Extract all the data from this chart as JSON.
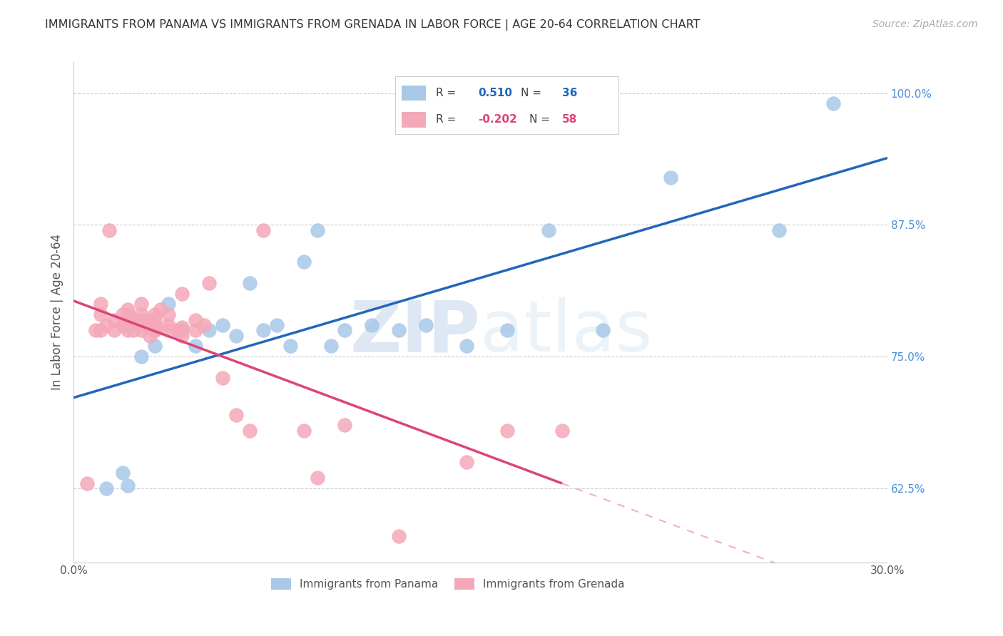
{
  "title": "IMMIGRANTS FROM PANAMA VS IMMIGRANTS FROM GRENADA IN LABOR FORCE | AGE 20-64 CORRELATION CHART",
  "source": "Source: ZipAtlas.com",
  "ylabel": "In Labor Force | Age 20-64",
  "xlim": [
    0.0,
    0.3
  ],
  "ylim": [
    0.555,
    1.03
  ],
  "x_ticks": [
    0.0,
    0.05,
    0.1,
    0.15,
    0.2,
    0.25,
    0.3
  ],
  "x_tick_labels": [
    "0.0%",
    "",
    "",
    "",
    "",
    "",
    "30.0%"
  ],
  "y_ticks": [
    0.625,
    0.75,
    0.875,
    1.0
  ],
  "y_tick_labels": [
    "62.5%",
    "75.0%",
    "87.5%",
    "100.0%"
  ],
  "panama_color": "#a8c8e8",
  "grenada_color": "#f4a8b8",
  "panama_line_color": "#2266bb",
  "grenada_line_solid_color": "#dd4477",
  "grenada_line_dash_color": "#f0b0c0",
  "watermark_zip": "ZIP",
  "watermark_atlas": "atlas",
  "legend_R_panama": "0.510",
  "legend_N_panama": "36",
  "legend_R_grenada": "-0.202",
  "legend_N_grenada": "58",
  "panama_x": [
    0.012,
    0.018,
    0.02,
    0.025,
    0.03,
    0.03,
    0.035,
    0.04,
    0.045,
    0.05,
    0.055,
    0.06,
    0.065,
    0.07,
    0.075,
    0.08,
    0.085,
    0.09,
    0.095,
    0.1,
    0.11,
    0.12,
    0.13,
    0.145,
    0.16,
    0.175,
    0.195,
    0.22,
    0.26,
    0.28
  ],
  "panama_y": [
    0.625,
    0.64,
    0.628,
    0.75,
    0.76,
    0.775,
    0.8,
    0.775,
    0.76,
    0.775,
    0.78,
    0.77,
    0.82,
    0.775,
    0.78,
    0.76,
    0.84,
    0.87,
    0.76,
    0.775,
    0.78,
    0.775,
    0.78,
    0.76,
    0.775,
    0.87,
    0.775,
    0.92,
    0.87,
    0.99
  ],
  "grenada_x": [
    0.005,
    0.008,
    0.01,
    0.01,
    0.01,
    0.012,
    0.013,
    0.015,
    0.015,
    0.018,
    0.018,
    0.02,
    0.02,
    0.02,
    0.02,
    0.02,
    0.022,
    0.022,
    0.025,
    0.025,
    0.025,
    0.025,
    0.025,
    0.028,
    0.028,
    0.03,
    0.03,
    0.03,
    0.03,
    0.032,
    0.035,
    0.035,
    0.035,
    0.038,
    0.04,
    0.04,
    0.04,
    0.045,
    0.045,
    0.048,
    0.05,
    0.055,
    0.06,
    0.065,
    0.07,
    0.085,
    0.09,
    0.1,
    0.12,
    0.145,
    0.16,
    0.18
  ],
  "grenada_y": [
    0.63,
    0.775,
    0.775,
    0.79,
    0.8,
    0.78,
    0.87,
    0.775,
    0.785,
    0.78,
    0.79,
    0.775,
    0.78,
    0.785,
    0.79,
    0.795,
    0.775,
    0.785,
    0.775,
    0.78,
    0.785,
    0.79,
    0.8,
    0.77,
    0.785,
    0.775,
    0.78,
    0.785,
    0.79,
    0.795,
    0.775,
    0.78,
    0.79,
    0.775,
    0.77,
    0.778,
    0.81,
    0.775,
    0.785,
    0.78,
    0.82,
    0.73,
    0.695,
    0.68,
    0.87,
    0.68,
    0.635,
    0.685,
    0.58,
    0.65,
    0.68,
    0.68
  ],
  "background_color": "#ffffff",
  "grid_color": "#cccccc"
}
